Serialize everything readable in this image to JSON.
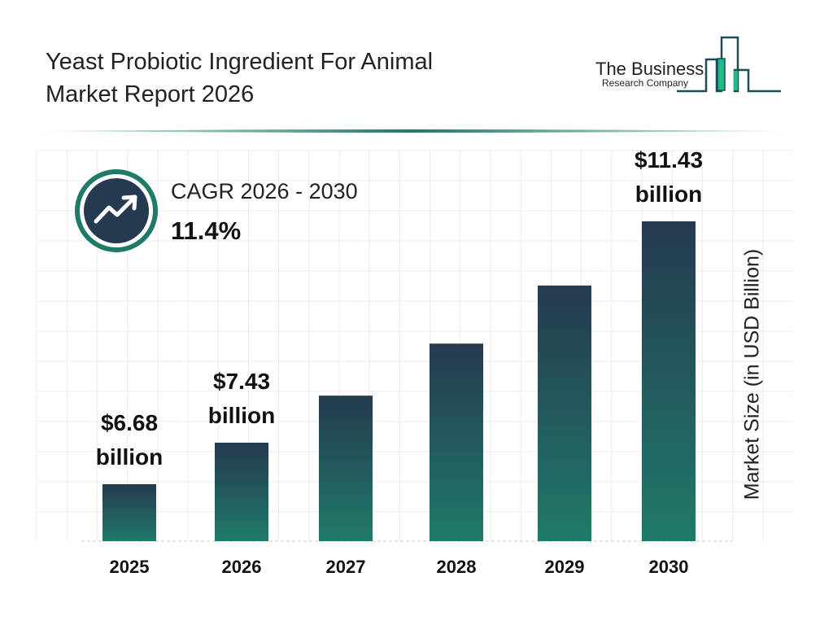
{
  "title_line1": "Yeast Probiotic Ingredient For Animal",
  "title_line2": "Market Report 2026",
  "logo": {
    "line1": "The Business",
    "line2": "Research Company"
  },
  "cagr": {
    "label": "CAGR 2026 - 2030",
    "value": "11.4%",
    "icon": "trend-up-arrow-icon"
  },
  "colors": {
    "bar_top": "#253a50",
    "bar_bottom": "#1f7a6a",
    "accent": "#1f7a6a"
  },
  "chart_data": {
    "type": "bar",
    "categories": [
      "2025",
      "2026",
      "2027",
      "2028",
      "2029",
      "2030"
    ],
    "values": [
      6.68,
      7.43,
      8.28,
      9.22,
      10.27,
      11.43
    ],
    "data_labels": [
      {
        "index": 0,
        "line1": "$6.68",
        "line2": "billion"
      },
      {
        "index": 1,
        "line1": "$7.43",
        "line2": "billion"
      },
      {
        "index": 5,
        "line1": "$11.43",
        "line2": "billion"
      }
    ],
    "ylabel": "Market Size (in USD Billion)",
    "xlabel": "",
    "grid": true
  }
}
